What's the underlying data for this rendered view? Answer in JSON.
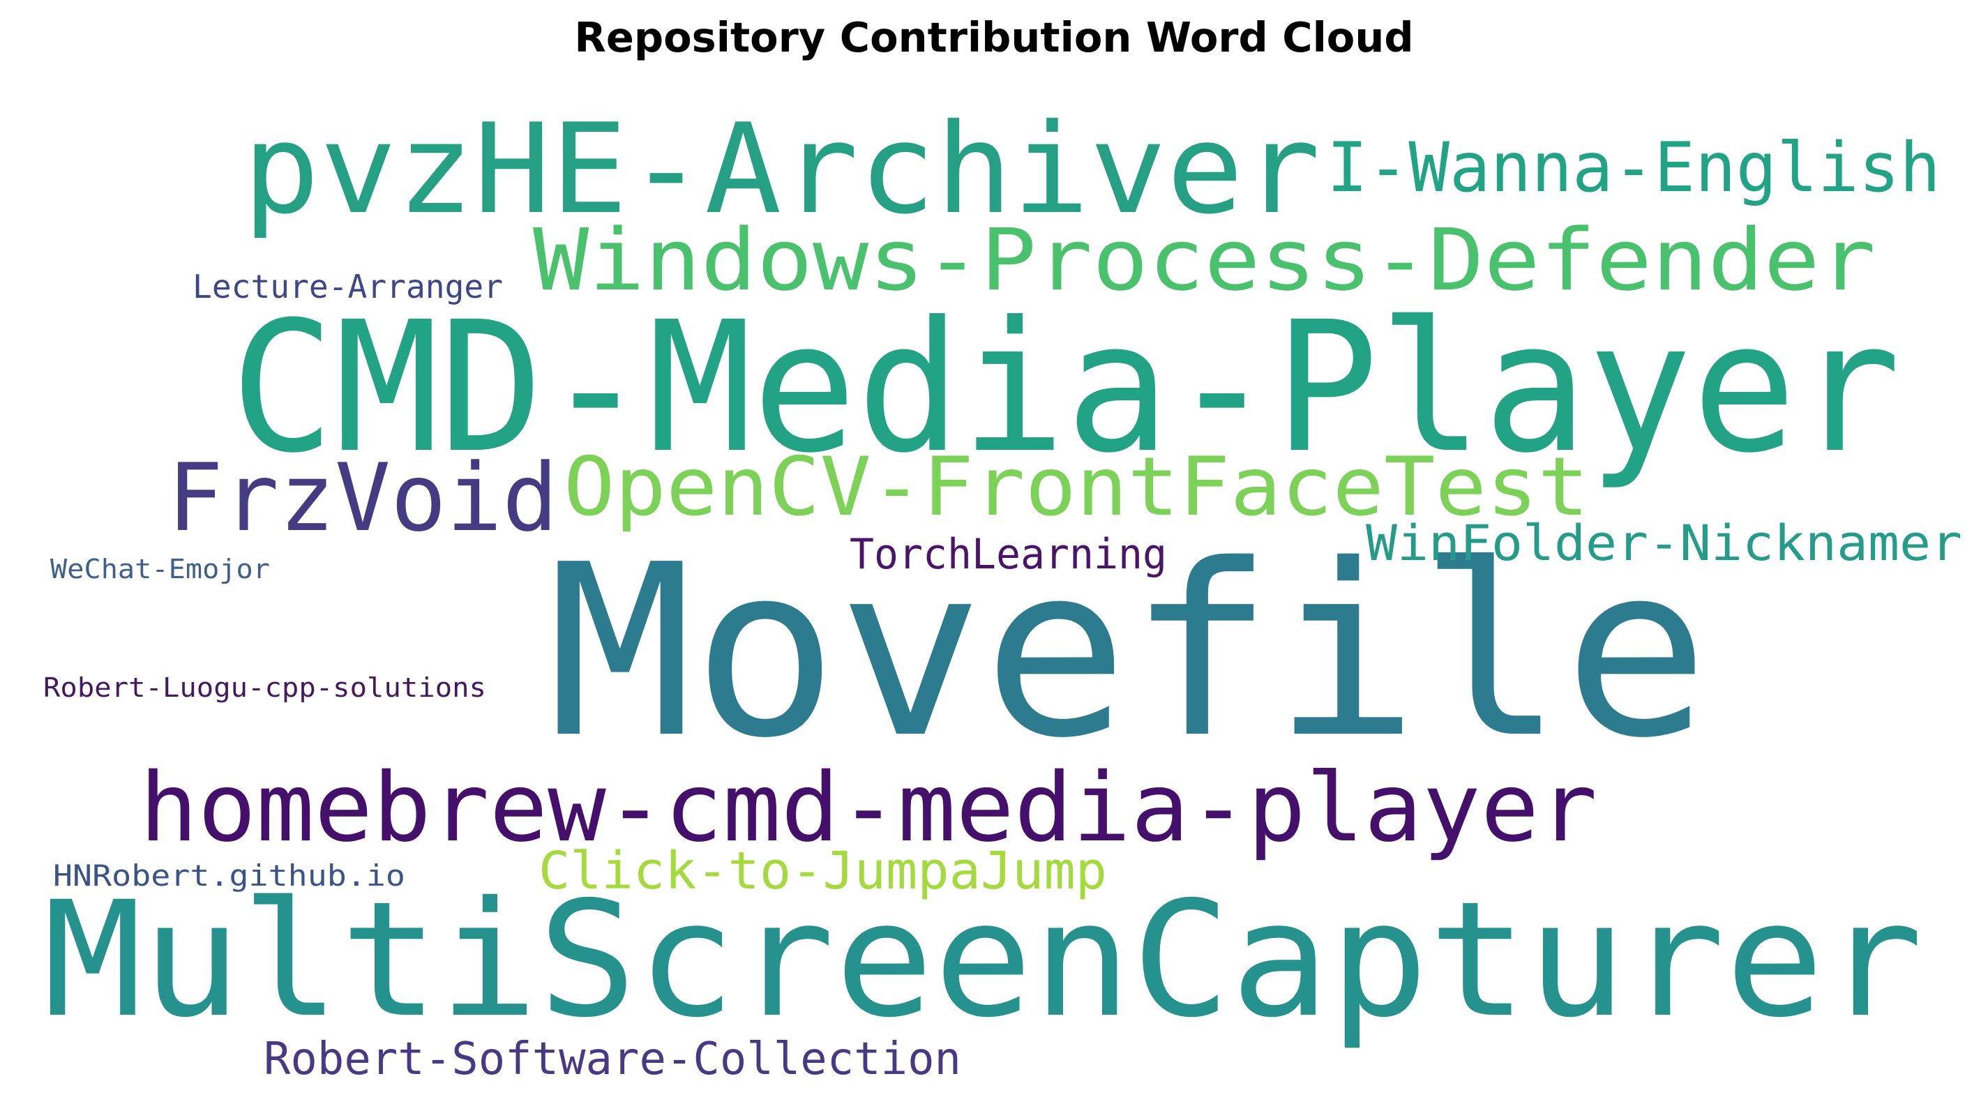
{
  "chart_data": {
    "type": "wordcloud",
    "title": "Repository Contribution Word Cloud",
    "words": [
      {
        "text": "Movefile",
        "weight": 100,
        "color": "#2c7b8e"
      },
      {
        "text": "CMD-Media-Player",
        "weight": 78,
        "color": "#22a386"
      },
      {
        "text": "MultiScreenCapturer",
        "weight": 72,
        "color": "#25928e"
      },
      {
        "text": "pvzHE-Archiver",
        "weight": 60,
        "color": "#26a085"
      },
      {
        "text": "homebrew-cmd-media-player",
        "weight": 44,
        "color": "#45106c"
      },
      {
        "text": "FrzVoid",
        "weight": 42,
        "color": "#443b83"
      },
      {
        "text": "Windows-Process-Defender",
        "weight": 40,
        "color": "#4ac16c"
      },
      {
        "text": "OpenCV-FrontFaceTest",
        "weight": 39,
        "color": "#7cd157"
      },
      {
        "text": "I-Wanna-English",
        "weight": 32,
        "color": "#22a386"
      },
      {
        "text": "Click-to-JumpaJump",
        "weight": 24,
        "color": "#a4da3e"
      },
      {
        "text": "WinFolder-Nicknamer",
        "weight": 24,
        "color": "#259b8a"
      },
      {
        "text": "Robert-Software-Collection",
        "weight": 22,
        "color": "#473983"
      },
      {
        "text": "TorchLearning",
        "weight": 20,
        "color": "#4a1469"
      },
      {
        "text": "Lecture-Arranger",
        "weight": 15,
        "color": "#3d4688"
      },
      {
        "text": "HNRobert.github.io",
        "weight": 14,
        "color": "#3a548a"
      },
      {
        "text": "WeChat-Emojor",
        "weight": 12,
        "color": "#40608c"
      },
      {
        "text": "Robert-Luogu-cpp-solutions",
        "weight": 12,
        "color": "#46185f"
      }
    ]
  }
}
